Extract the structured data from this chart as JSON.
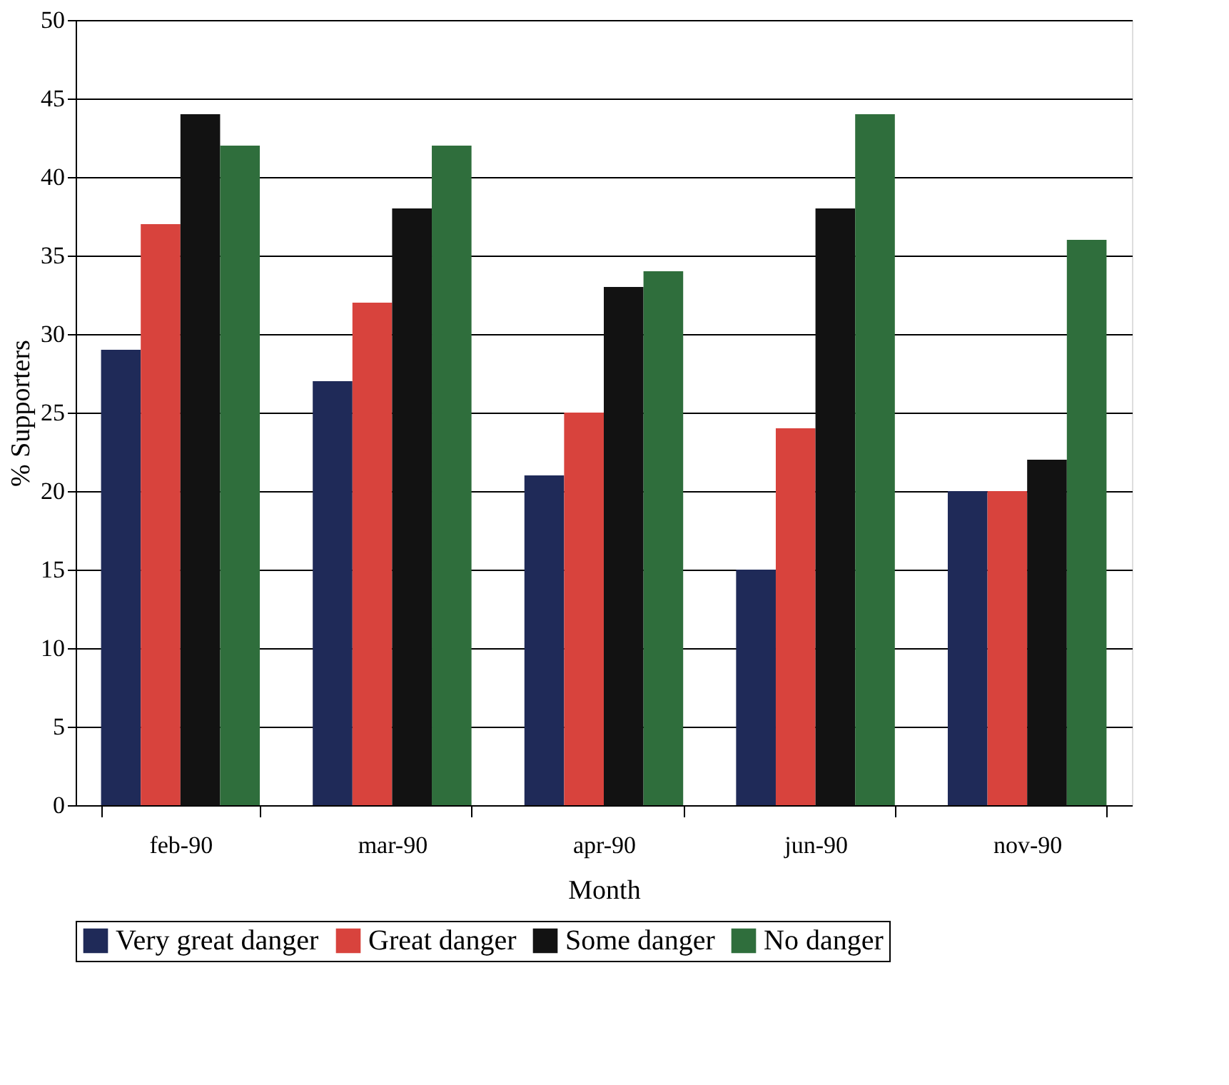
{
  "chart_data": {
    "type": "bar",
    "xlabel": "Month",
    "ylabel": "% Supporters",
    "categories": [
      "feb-90",
      "mar-90",
      "apr-90",
      "jun-90",
      "nov-90"
    ],
    "series": [
      {
        "name": "Very great danger",
        "color": "#1f2a58",
        "values": [
          29,
          27,
          21,
          15,
          20
        ]
      },
      {
        "name": "Great danger",
        "color": "#d8433d",
        "values": [
          37,
          32,
          25,
          24,
          20
        ]
      },
      {
        "name": "Some danger",
        "color": "#121212",
        "values": [
          44,
          38,
          33,
          38,
          22
        ]
      },
      {
        "name": "No danger",
        "color": "#2f6e3c",
        "values": [
          42,
          42,
          34,
          44,
          36
        ]
      }
    ],
    "ylim": [
      0,
      50
    ],
    "yticks": [
      0,
      5,
      10,
      15,
      20,
      25,
      30,
      35,
      40,
      45,
      50
    ],
    "grid": "y",
    "legend": "bottom"
  }
}
